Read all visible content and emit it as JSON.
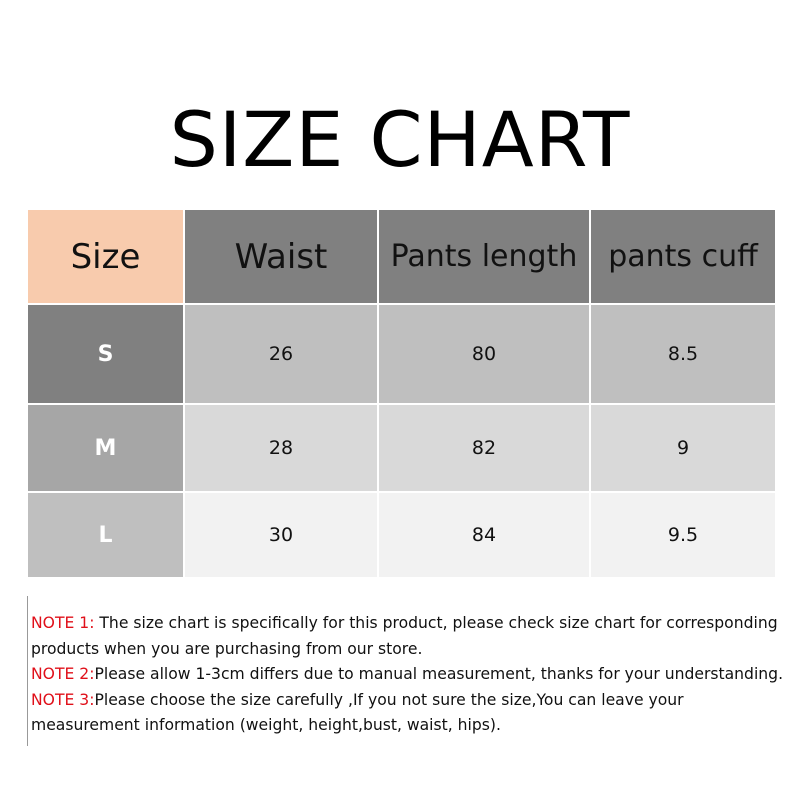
{
  "title": "SIZE CHART",
  "colors": {
    "size_header": "#f8cbad",
    "header": "#808080",
    "note_label": "#e0101a"
  },
  "table": {
    "headers": [
      "Size",
      "Waist",
      "Pants length",
      "pants cuff"
    ],
    "rows": [
      {
        "size": "S",
        "waist": "26",
        "length": "80",
        "cuff": "8.5",
        "size_bg": "#808080",
        "cell_bg": "#bfbfbf"
      },
      {
        "size": "M",
        "waist": "28",
        "length": "82",
        "cuff": "9",
        "size_bg": "#a6a6a6",
        "cell_bg": "#d9d9d9"
      },
      {
        "size": "L",
        "waist": "30",
        "length": "84",
        "cuff": "9.5",
        "size_bg": "#bfbfbf",
        "cell_bg": "#f2f2f2"
      }
    ]
  },
  "notes": [
    {
      "label": "NOTE 1:",
      "text": " The size chart is specifically for this product, please check size chart for corresponding products when you are purchasing from our store."
    },
    {
      "label": "NOTE 2:",
      "text": "Please allow 1-3cm differs due to manual measurement, thanks for your understanding."
    },
    {
      "label": "NOTE 3:",
      "text": "Please choose the size carefully ,If you not sure the size,You can leave your measurement information (weight, height,bust, waist, hips)."
    }
  ]
}
